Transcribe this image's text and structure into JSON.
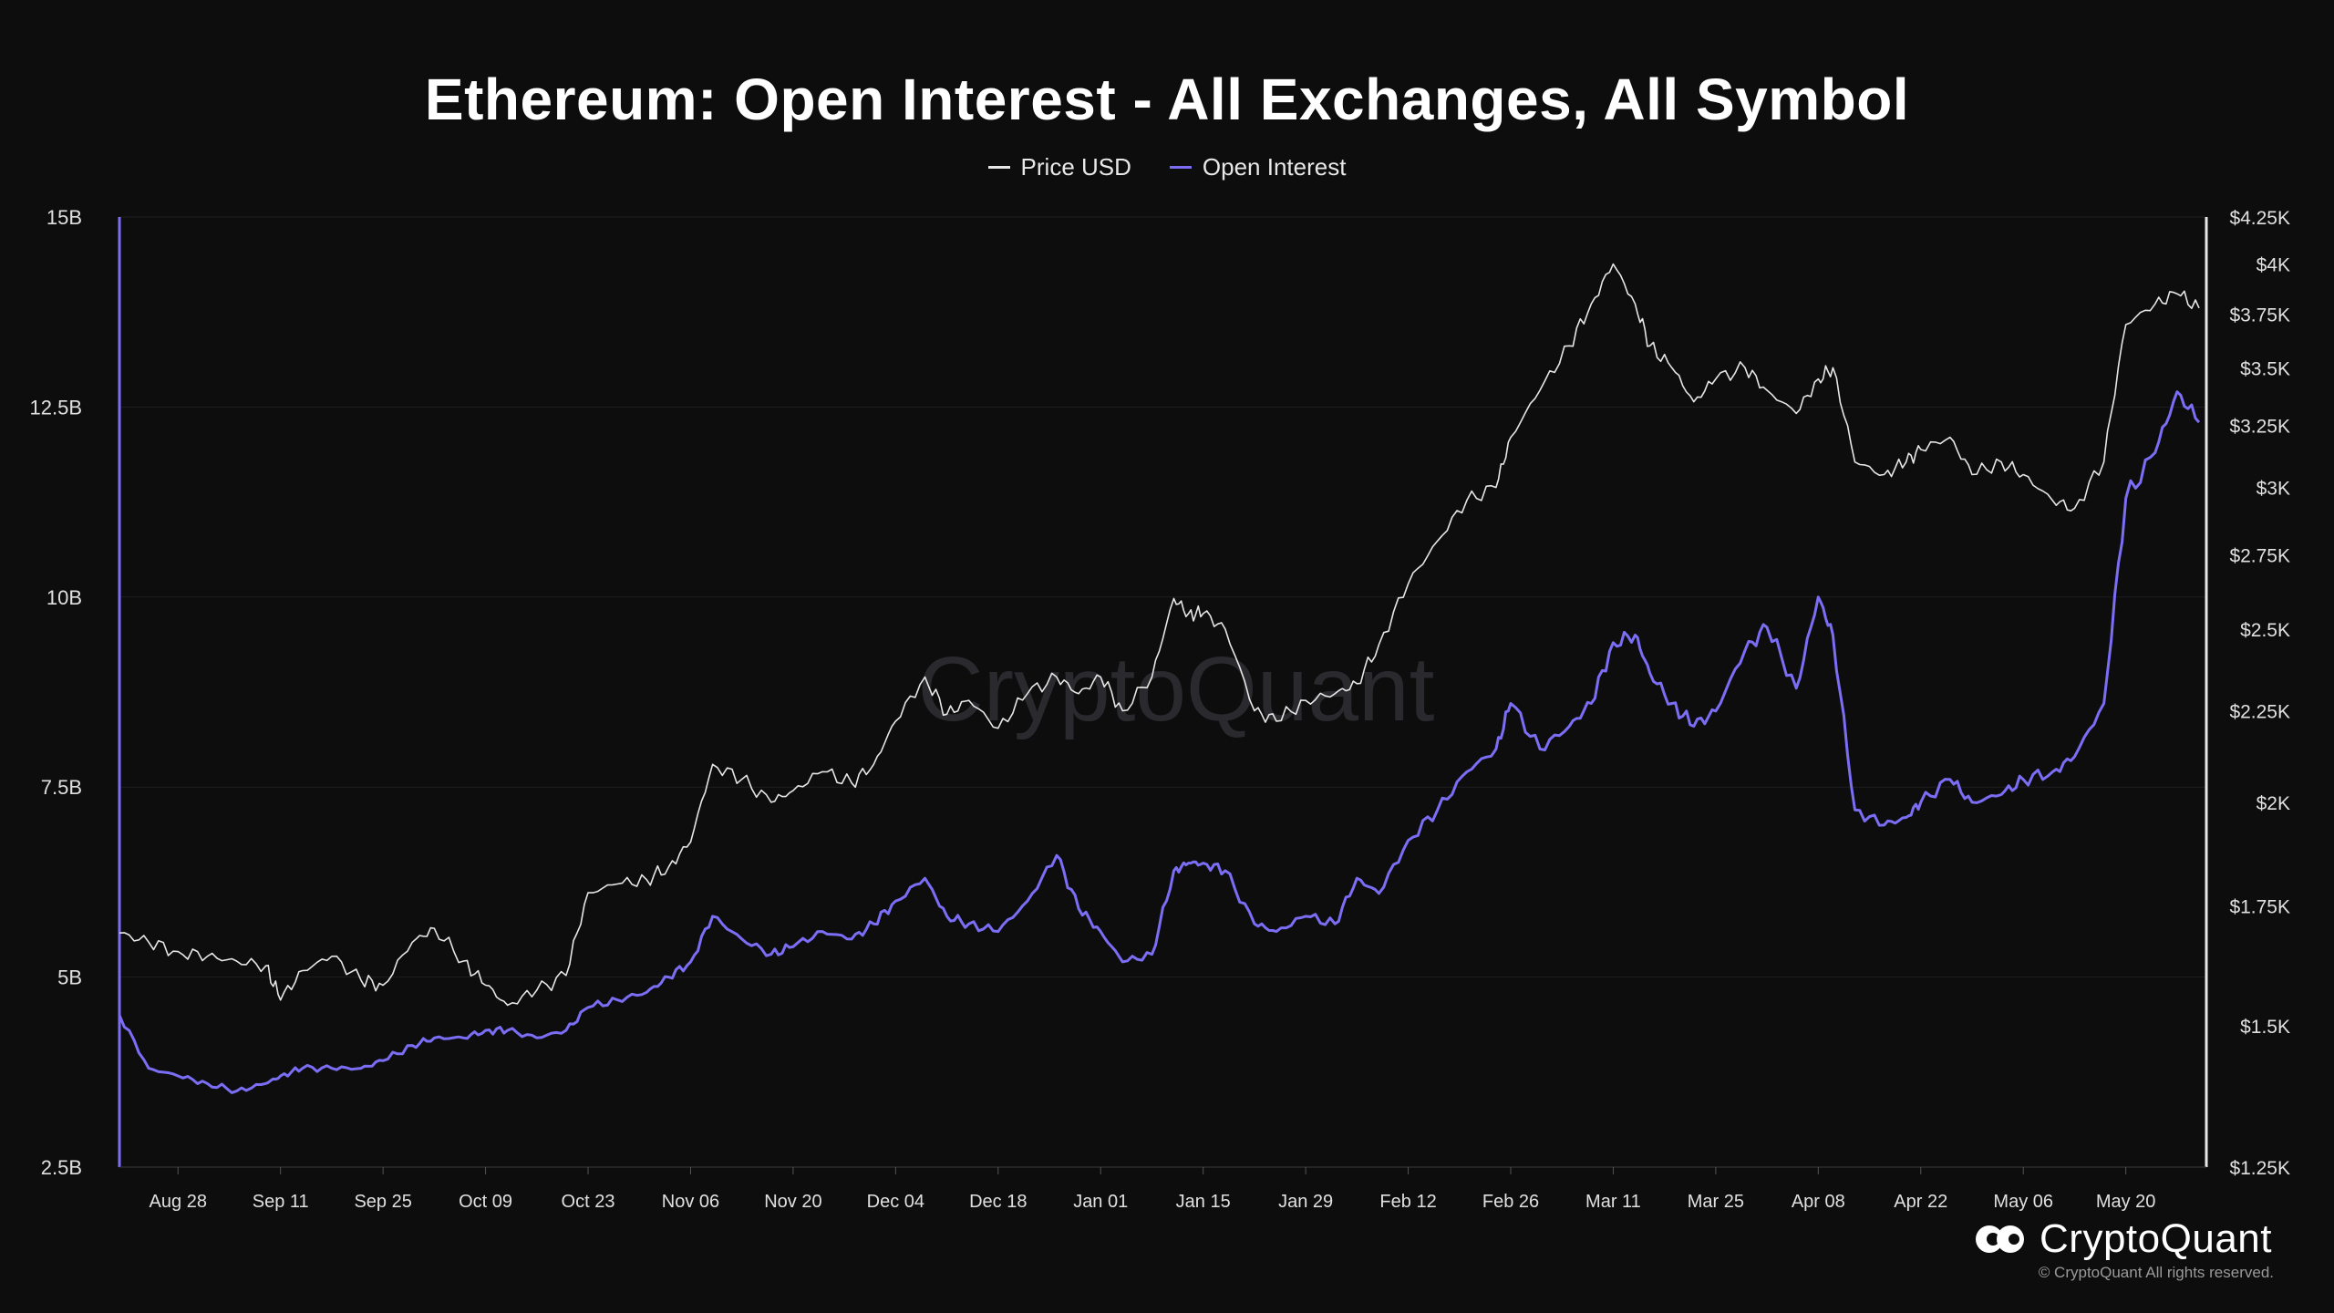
{
  "header": {
    "title": "Ethereum: Open Interest - All Exchanges, All Symbol"
  },
  "legend": [
    {
      "label": "Price USD",
      "color": "#e6e6e6"
    },
    {
      "label": "Open Interest",
      "color": "#7b6ef5"
    }
  ],
  "watermark": "CryptoQuant",
  "brand": {
    "name": "CryptoQuant",
    "copyright": "© CryptoQuant All rights reserved."
  },
  "chart_data": {
    "type": "line",
    "title": "Ethereum: Open Interest - All Exchanges, All Symbol",
    "x_tick_labels": [
      "Aug 28",
      "Sep 11",
      "Sep 25",
      "Oct 09",
      "Oct 23",
      "Nov 06",
      "Nov 20",
      "Dec 04",
      "Dec 18",
      "Jan 01",
      "Jan 15",
      "Jan 29",
      "Feb 12",
      "Feb 26",
      "Mar 11",
      "Mar 25",
      "Apr 08",
      "Apr 22",
      "May 06",
      "May 20"
    ],
    "y_left": {
      "ticks": [
        "15B",
        "12.5B",
        "10B",
        "7.5B",
        "5B",
        "2.5B"
      ],
      "range": [
        2.5,
        15
      ],
      "unit": "B"
    },
    "y_right": {
      "ticks": [
        "$4.25K",
        "$4K",
        "$3.75K",
        "$3.5K",
        "$3.25K",
        "$3K",
        "$2.75K",
        "$2.5K",
        "$2.25K",
        "$2K",
        "$1.75K",
        "$1.5K",
        "$1.25K"
      ],
      "range": [
        1250,
        4250
      ],
      "scale": "log"
    },
    "legend_position": "top-center",
    "grid": "horizontal",
    "series": [
      {
        "name": "Price USD",
        "axis": "right",
        "color": "#e6e6e6",
        "points": [
          [
            "Aug 20",
            1690
          ],
          [
            "Aug 24",
            1670
          ],
          [
            "Aug 28",
            1650
          ],
          [
            "Sep 01",
            1640
          ],
          [
            "Sep 05",
            1630
          ],
          [
            "Sep 09",
            1620
          ],
          [
            "Sep 11",
            1550
          ],
          [
            "Sep 14",
            1610
          ],
          [
            "Sep 18",
            1640
          ],
          [
            "Sep 22",
            1590
          ],
          [
            "Sep 25",
            1580
          ],
          [
            "Sep 29",
            1670
          ],
          [
            "Oct 02",
            1700
          ],
          [
            "Oct 06",
            1630
          ],
          [
            "Oct 09",
            1580
          ],
          [
            "Oct 12",
            1540
          ],
          [
            "Oct 16",
            1570
          ],
          [
            "Oct 20",
            1600
          ],
          [
            "Oct 23",
            1780
          ],
          [
            "Oct 27",
            1800
          ],
          [
            "Oct 31",
            1810
          ],
          [
            "Nov 03",
            1840
          ],
          [
            "Nov 06",
            1900
          ],
          [
            "Nov 09",
            2100
          ],
          [
            "Nov 13",
            2060
          ],
          [
            "Nov 17",
            2000
          ],
          [
            "Nov 20",
            2030
          ],
          [
            "Nov 24",
            2080
          ],
          [
            "Nov 28",
            2050
          ],
          [
            "Dec 01",
            2100
          ],
          [
            "Dec 04",
            2220
          ],
          [
            "Dec 08",
            2350
          ],
          [
            "Dec 11",
            2240
          ],
          [
            "Dec 14",
            2280
          ],
          [
            "Dec 18",
            2200
          ],
          [
            "Dec 22",
            2300
          ],
          [
            "Dec 26",
            2350
          ],
          [
            "Dec 29",
            2300
          ],
          [
            "Jan 01",
            2350
          ],
          [
            "Jan 04",
            2250
          ],
          [
            "Jan 08",
            2350
          ],
          [
            "Jan 11",
            2600
          ],
          [
            "Jan 13",
            2550
          ],
          [
            "Jan 15",
            2550
          ],
          [
            "Jan 18",
            2500
          ],
          [
            "Jan 22",
            2250
          ],
          [
            "Jan 25",
            2220
          ],
          [
            "Jan 29",
            2280
          ],
          [
            "Feb 02",
            2300
          ],
          [
            "Feb 05",
            2330
          ],
          [
            "Feb 08",
            2450
          ],
          [
            "Feb 12",
            2650
          ],
          [
            "Feb 16",
            2800
          ],
          [
            "Feb 20",
            2950
          ],
          [
            "Feb 24",
            3000
          ],
          [
            "Feb 26",
            3200
          ],
          [
            "Mar 01",
            3400
          ],
          [
            "Mar 05",
            3600
          ],
          [
            "Mar 08",
            3800
          ],
          [
            "Mar 11",
            4000
          ],
          [
            "Mar 14",
            3800
          ],
          [
            "Mar 16",
            3600
          ],
          [
            "Mar 19",
            3500
          ],
          [
            "Mar 22",
            3350
          ],
          [
            "Mar 25",
            3450
          ],
          [
            "Mar 29",
            3500
          ],
          [
            "Apr 01",
            3400
          ],
          [
            "Apr 05",
            3300
          ],
          [
            "Apr 08",
            3450
          ],
          [
            "Apr 10",
            3500
          ],
          [
            "Apr 13",
            3100
          ],
          [
            "Apr 17",
            3050
          ],
          [
            "Apr 20",
            3100
          ],
          [
            "Apr 22",
            3150
          ],
          [
            "Apr 26",
            3200
          ],
          [
            "Apr 29",
            3050
          ],
          [
            "May 03",
            3100
          ],
          [
            "May 06",
            3050
          ],
          [
            "May 10",
            2950
          ],
          [
            "May 13",
            2920
          ],
          [
            "May 17",
            3100
          ],
          [
            "May 20",
            3700
          ],
          [
            "May 24",
            3800
          ],
          [
            "May 27",
            3850
          ],
          [
            "May 30",
            3780
          ]
        ]
      },
      {
        "name": "Open Interest",
        "axis": "left",
        "color": "#7b6ef5",
        "points": [
          [
            "Aug 20",
            4.5
          ],
          [
            "Aug 24",
            3.8
          ],
          [
            "Aug 28",
            3.7
          ],
          [
            "Sep 01",
            3.6
          ],
          [
            "Sep 05",
            3.5
          ],
          [
            "Sep 09",
            3.6
          ],
          [
            "Sep 11",
            3.7
          ],
          [
            "Sep 14",
            3.8
          ],
          [
            "Sep 18",
            3.8
          ],
          [
            "Sep 22",
            3.8
          ],
          [
            "Sep 25",
            3.9
          ],
          [
            "Sep 29",
            4.1
          ],
          [
            "Oct 02",
            4.2
          ],
          [
            "Oct 06",
            4.2
          ],
          [
            "Oct 09",
            4.3
          ],
          [
            "Oct 12",
            4.3
          ],
          [
            "Oct 16",
            4.2
          ],
          [
            "Oct 20",
            4.3
          ],
          [
            "Oct 23",
            4.6
          ],
          [
            "Oct 27",
            4.7
          ],
          [
            "Oct 31",
            4.8
          ],
          [
            "Nov 03",
            5.0
          ],
          [
            "Nov 06",
            5.2
          ],
          [
            "Nov 09",
            5.8
          ],
          [
            "Nov 13",
            5.5
          ],
          [
            "Nov 17",
            5.3
          ],
          [
            "Nov 20",
            5.4
          ],
          [
            "Nov 24",
            5.6
          ],
          [
            "Nov 28",
            5.5
          ],
          [
            "Dec 01",
            5.7
          ],
          [
            "Dec 04",
            6.0
          ],
          [
            "Dec 08",
            6.3
          ],
          [
            "Dec 11",
            5.8
          ],
          [
            "Dec 14",
            5.7
          ],
          [
            "Dec 18",
            5.6
          ],
          [
            "Dec 22",
            6.0
          ],
          [
            "Dec 26",
            6.6
          ],
          [
            "Dec 29",
            5.9
          ],
          [
            "Jan 01",
            5.6
          ],
          [
            "Jan 04",
            5.2
          ],
          [
            "Jan 08",
            5.3
          ],
          [
            "Jan 11",
            6.4
          ],
          [
            "Jan 13",
            6.5
          ],
          [
            "Jan 15",
            6.5
          ],
          [
            "Jan 18",
            6.4
          ],
          [
            "Jan 22",
            5.7
          ],
          [
            "Jan 25",
            5.6
          ],
          [
            "Jan 29",
            5.8
          ],
          [
            "Feb 02",
            5.7
          ],
          [
            "Feb 05",
            6.3
          ],
          [
            "Feb 08",
            6.1
          ],
          [
            "Feb 12",
            6.8
          ],
          [
            "Feb 16",
            7.2
          ],
          [
            "Feb 20",
            7.7
          ],
          [
            "Feb 24",
            8.0
          ],
          [
            "Feb 26",
            8.6
          ],
          [
            "Mar 01",
            8.0
          ],
          [
            "Mar 05",
            8.3
          ],
          [
            "Mar 08",
            8.6
          ],
          [
            "Mar 11",
            9.4
          ],
          [
            "Mar 14",
            9.5
          ],
          [
            "Mar 16",
            9.0
          ],
          [
            "Mar 19",
            8.6
          ],
          [
            "Mar 22",
            8.3
          ],
          [
            "Mar 25",
            8.5
          ],
          [
            "Mar 29",
            9.3
          ],
          [
            "Apr 01",
            9.6
          ],
          [
            "Apr 05",
            8.8
          ],
          [
            "Apr 08",
            10.0
          ],
          [
            "Apr 10",
            9.5
          ],
          [
            "Apr 13",
            7.2
          ],
          [
            "Apr 17",
            7.0
          ],
          [
            "Apr 20",
            7.1
          ],
          [
            "Apr 22",
            7.3
          ],
          [
            "Apr 26",
            7.6
          ],
          [
            "Apr 29",
            7.3
          ],
          [
            "May 03",
            7.4
          ],
          [
            "May 06",
            7.6
          ],
          [
            "May 10",
            7.7
          ],
          [
            "May 13",
            7.9
          ],
          [
            "May 17",
            8.6
          ],
          [
            "May 20",
            11.3
          ],
          [
            "May 24",
            11.9
          ],
          [
            "May 27",
            12.7
          ],
          [
            "May 30",
            12.3
          ]
        ]
      }
    ]
  }
}
